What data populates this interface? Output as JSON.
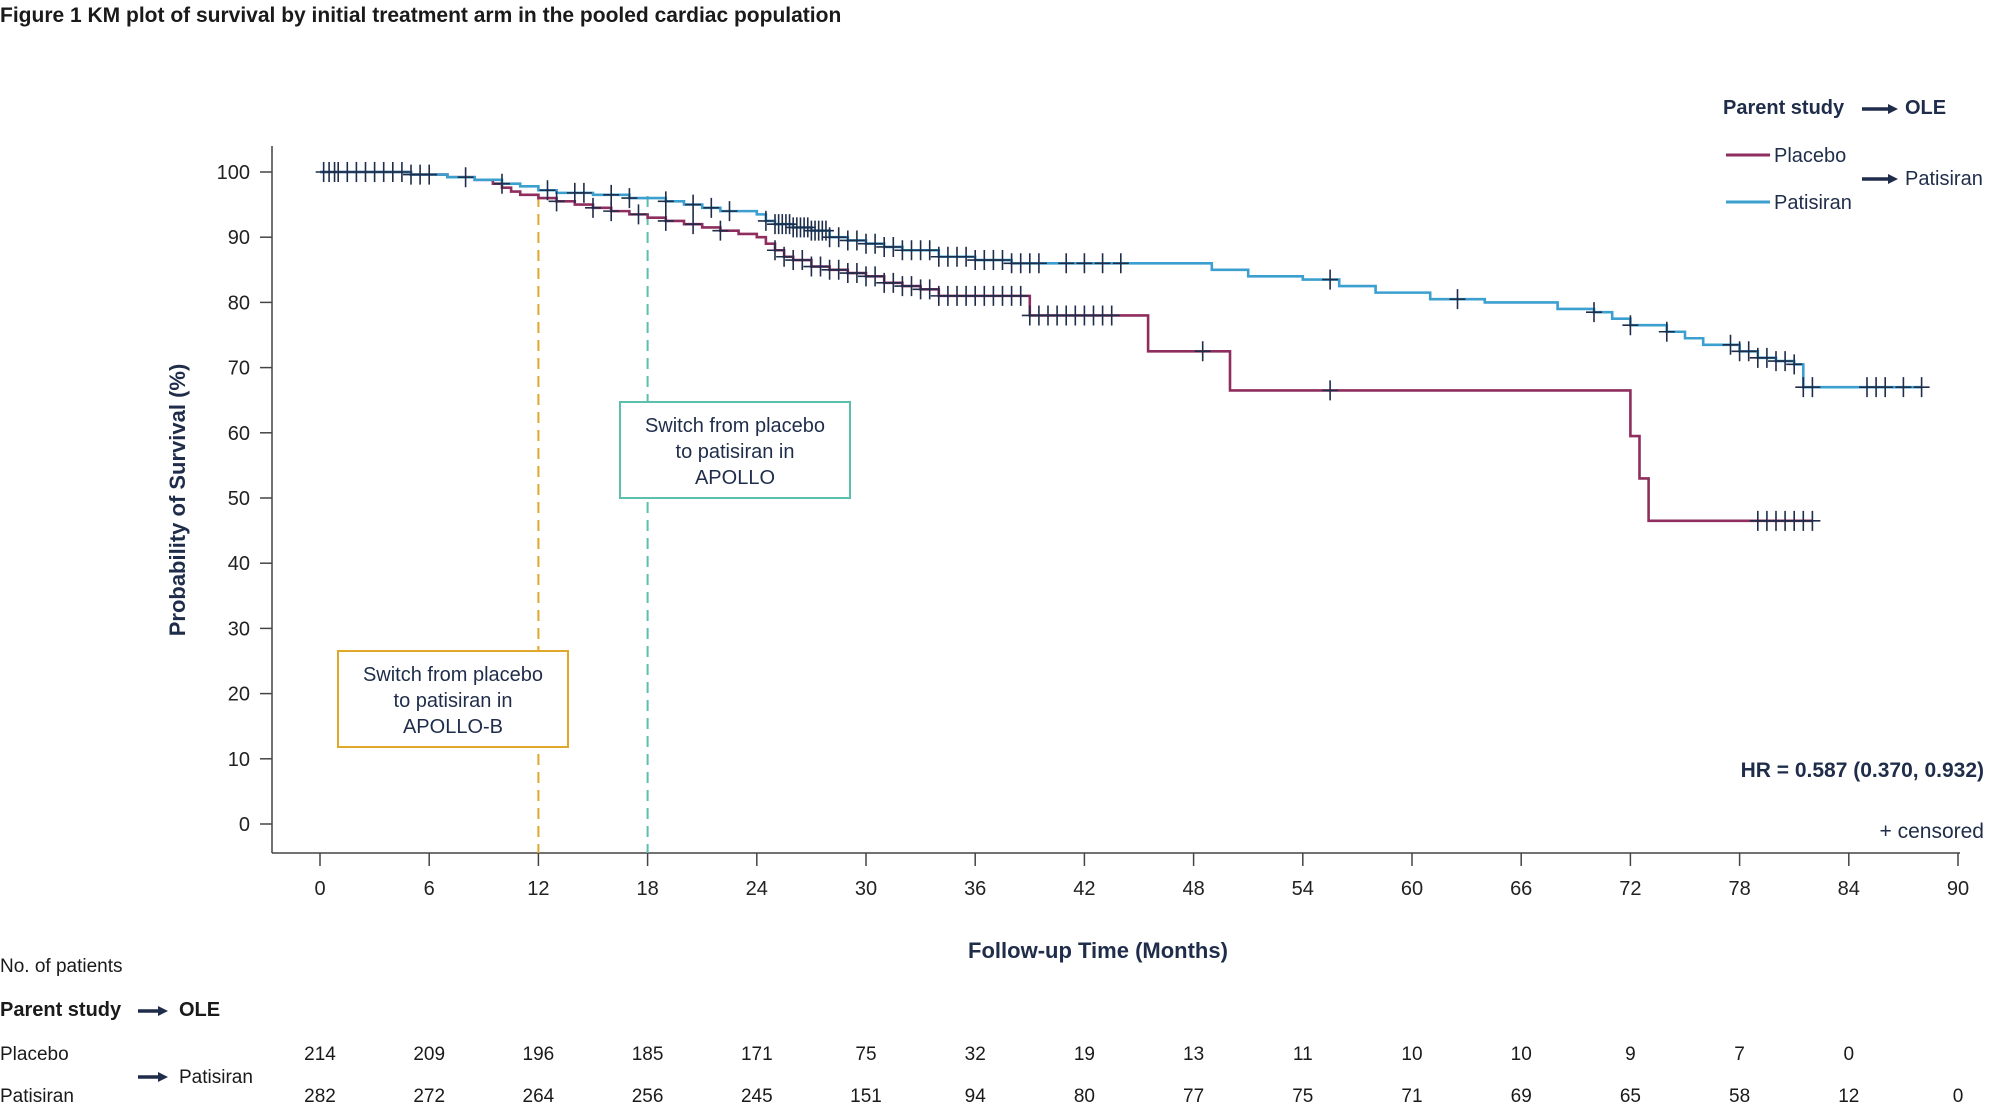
{
  "figure_title": "Figure 1 KM plot of survival by initial treatment arm in the pooled cardiac population",
  "legend": {
    "header_left": "Parent study",
    "header_right": "OLE",
    "placebo_label": "Placebo",
    "patisiran_label": "Patisiran",
    "ole_label": "Patisiran"
  },
  "hr_text": "HR = 0.587 (0.370, 0.932)",
  "censored_text": "+ censored",
  "annotations": [
    {
      "text_lines": [
        "Switch from placebo",
        "to patisiran in",
        "APOLLO"
      ],
      "x": 18,
      "color": "#5bbfae"
    },
    {
      "text_lines": [
        "Switch from placebo",
        "to patisiran in",
        "APOLLO-B"
      ],
      "x": 12,
      "color": "#e0a72b"
    }
  ],
  "risk_table": {
    "title": "No. of patients",
    "header_left": "Parent study",
    "header_right": "OLE",
    "ole_label": "Patisiran",
    "row_labels": [
      "Placebo",
      "Patisiran"
    ],
    "placebo_counts": [
      "214",
      "209",
      "196",
      "185",
      "171",
      "75",
      "32",
      "19",
      "13",
      "11",
      "10",
      "10",
      "9",
      "7",
      "0"
    ],
    "patisiran_counts": [
      "282",
      "272",
      "264",
      "256",
      "245",
      "151",
      "94",
      "80",
      "77",
      "75",
      "71",
      "69",
      "65",
      "58",
      "12",
      "0"
    ]
  },
  "chart_data": {
    "type": "line",
    "title": "Figure 1 KM plot of survival by initial treatment arm in the pooled cardiac population",
    "xlabel": "Follow-up Time (Months)",
    "ylabel": "Probability of Survival (%)",
    "xlim": [
      0,
      90
    ],
    "ylim": [
      0,
      100
    ],
    "xticks": [
      0,
      6,
      12,
      18,
      24,
      30,
      36,
      42,
      48,
      54,
      60,
      66,
      72,
      78,
      84,
      90
    ],
    "yticks": [
      0,
      10,
      20,
      30,
      40,
      50,
      60,
      70,
      80,
      90,
      100
    ],
    "grid": false,
    "legend_position": "top-right",
    "series": [
      {
        "name": "Placebo",
        "color": "#8e2d5e",
        "steps": [
          [
            0,
            100
          ],
          [
            5,
            99.6
          ],
          [
            7,
            99.2
          ],
          [
            8.5,
            98.8
          ],
          [
            9.5,
            98.2
          ],
          [
            10,
            97.6
          ],
          [
            10.5,
            97.0
          ],
          [
            11,
            96.5
          ],
          [
            12,
            96.0
          ],
          [
            13,
            95.5
          ],
          [
            14,
            95.0
          ],
          [
            15,
            94.5
          ],
          [
            16,
            94.0
          ],
          [
            17,
            93.5
          ],
          [
            18,
            93.0
          ],
          [
            19,
            92.5
          ],
          [
            20,
            92.0
          ],
          [
            21,
            91.5
          ],
          [
            22,
            91.0
          ],
          [
            23,
            90.5
          ],
          [
            24,
            90.0
          ],
          [
            24.5,
            89.0
          ],
          [
            25,
            88.0
          ],
          [
            25.5,
            87.0
          ],
          [
            26,
            86.5
          ],
          [
            27,
            85.5
          ],
          [
            28,
            85.0
          ],
          [
            29,
            84.5
          ],
          [
            30,
            84.0
          ],
          [
            31,
            83.0
          ],
          [
            32,
            82.5
          ],
          [
            33,
            82.0
          ],
          [
            34,
            81.0
          ],
          [
            36,
            81.0
          ],
          [
            39,
            78.0
          ],
          [
            40,
            78.0
          ],
          [
            45.5,
            72.5
          ],
          [
            50,
            66.5
          ],
          [
            71,
            66.5
          ],
          [
            72,
            59.5
          ],
          [
            72.5,
            53.0
          ],
          [
            73,
            46.5
          ],
          [
            82,
            46.5
          ]
        ],
        "censored": [
          13,
          15,
          16,
          17.5,
          19,
          20.5,
          22,
          25,
          25.5,
          26,
          26.5,
          27,
          27.5,
          28,
          28.5,
          29,
          29.5,
          30,
          30.5,
          31,
          31.5,
          32,
          32.5,
          33,
          33.5,
          34,
          34.5,
          35,
          35.5,
          36,
          36.5,
          37,
          37.5,
          38,
          38.5,
          39,
          39.5,
          40,
          40.5,
          41,
          41.5,
          42,
          42.5,
          43,
          43.5,
          48.5,
          55.5,
          79,
          79.5,
          80,
          80.5,
          81,
          81.5,
          82
        ]
      },
      {
        "name": "Patisiran",
        "color": "#3b9fcf",
        "steps": [
          [
            0,
            100
          ],
          [
            5,
            99.6
          ],
          [
            7,
            99.2
          ],
          [
            8.5,
            98.8
          ],
          [
            10,
            98.2
          ],
          [
            11,
            97.8
          ],
          [
            12,
            97.2
          ],
          [
            13,
            96.8
          ],
          [
            15,
            96.5
          ],
          [
            17,
            96.0
          ],
          [
            19,
            95.5
          ],
          [
            20,
            95.0
          ],
          [
            21,
            94.5
          ],
          [
            22,
            94.0
          ],
          [
            24,
            93.5
          ],
          [
            24.5,
            92.5
          ],
          [
            25,
            92.0
          ],
          [
            26,
            91.5
          ],
          [
            27,
            91.0
          ],
          [
            28,
            90.0
          ],
          [
            29,
            89.5
          ],
          [
            30,
            89.0
          ],
          [
            31,
            88.5
          ],
          [
            32,
            88.0
          ],
          [
            34,
            87.0
          ],
          [
            36,
            86.5
          ],
          [
            38,
            86.0
          ],
          [
            42,
            86.0
          ],
          [
            49,
            85.0
          ],
          [
            51,
            84.0
          ],
          [
            54,
            83.5
          ],
          [
            56,
            82.5
          ],
          [
            58,
            81.5
          ],
          [
            61,
            80.5
          ],
          [
            64,
            80.0
          ],
          [
            68,
            79.0
          ],
          [
            70,
            78.5
          ],
          [
            71,
            77.5
          ],
          [
            72,
            76.5
          ],
          [
            74,
            75.5
          ],
          [
            75,
            74.5
          ],
          [
            76,
            73.5
          ],
          [
            78,
            72.5
          ],
          [
            79,
            71.5
          ],
          [
            80,
            71.0
          ],
          [
            81,
            70.5
          ],
          [
            81.5,
            67.0
          ],
          [
            88,
            67.0
          ]
        ],
        "censored": [
          0.2,
          0.5,
          0.8,
          1,
          1.5,
          2,
          2.5,
          3,
          3.5,
          4,
          4.5,
          5,
          5.5,
          6,
          8,
          10,
          12.5,
          14,
          14.5,
          16,
          17,
          19,
          20.5,
          21.5,
          22.5,
          24.5,
          25,
          25.2,
          25.4,
          25.6,
          25.8,
          26,
          26.2,
          26.4,
          26.6,
          26.8,
          27,
          27.2,
          27.4,
          27.6,
          27.8,
          28,
          28.5,
          29,
          29.5,
          30,
          30.5,
          31,
          31.5,
          32,
          32.5,
          33,
          33.5,
          34,
          34.5,
          35,
          35.5,
          36,
          36.5,
          37,
          37.5,
          38,
          38.5,
          39,
          39.5,
          41,
          42,
          43,
          44,
          55.5,
          62.5,
          70,
          72,
          74,
          77.5,
          78,
          78.5,
          79,
          79.5,
          80,
          80.5,
          81,
          81.5,
          82,
          85,
          85.5,
          86,
          87,
          88
        ]
      }
    ]
  }
}
